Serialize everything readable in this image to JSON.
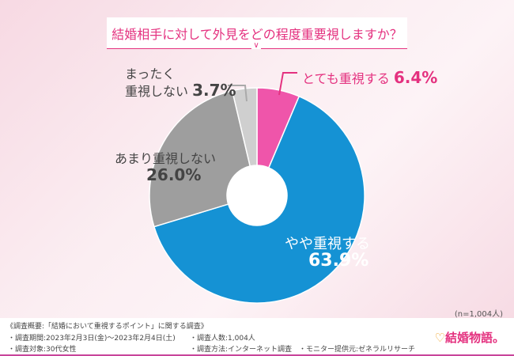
{
  "chart_data": {
    "type": "pie",
    "style": "donut",
    "title": "結婚相手に対して外見をどの程度重要視しますか？",
    "slices": [
      {
        "label": "とても重視する",
        "value": 6.4,
        "display": "6.4%",
        "color": "#ef55aa"
      },
      {
        "label": "やや重視する",
        "value": 63.9,
        "display": "63.9%",
        "color": "#1592d4"
      },
      {
        "label": "あまり重視しない",
        "value": 26.0,
        "display": "26.0%",
        "color": "#9e9e9e"
      },
      {
        "label": "まったく重視しない",
        "value": 3.7,
        "display": "3.7%",
        "color": "#cfcfcf"
      }
    ],
    "sample_note": "(n=1,004人)"
  },
  "labels": {
    "very": "とても重視する",
    "somewhat": "やや重視する",
    "not_much_1": "あまり重視しない",
    "not_at_all_1": "まったく",
    "not_at_all_2": "重視しない"
  },
  "footer": {
    "overview": "《調査概要:「結婚において重視するポイント」に関する調査》",
    "period": "・調査期間:2023年2月3日(金)〜2023年2月4日(土)",
    "target": "・調査対象:30代女性",
    "count": "・調査人数:1,004人",
    "method": "・調査方法:インターネット調査",
    "provider": "・モニター提供元:ゼネラルリサーチ",
    "logo": "結婚物語。"
  }
}
